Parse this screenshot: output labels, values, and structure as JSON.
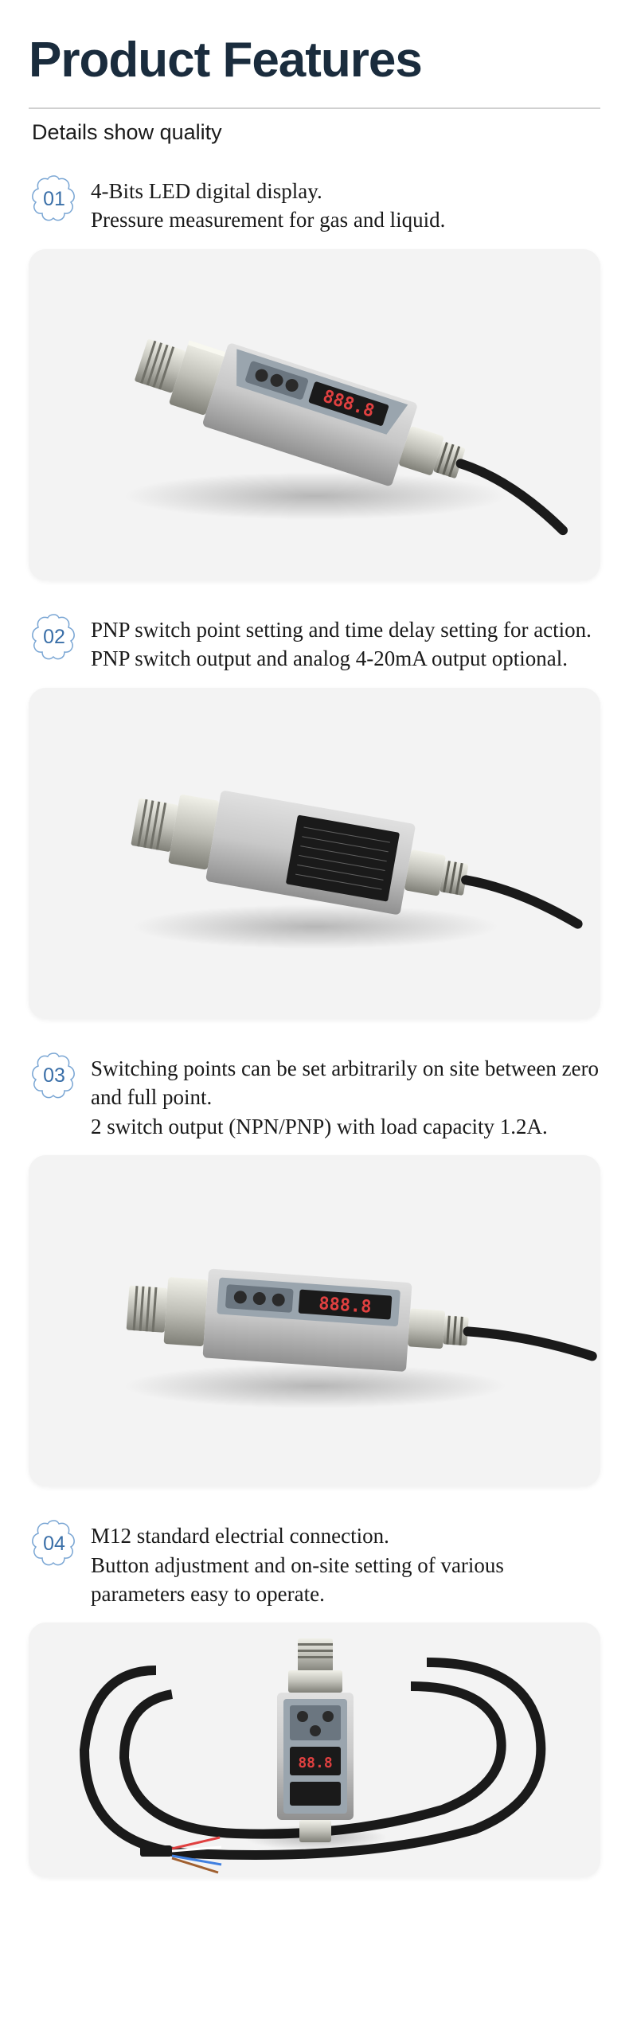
{
  "title": "Product Features",
  "subtitle": "Details show quality",
  "badge_stroke": "#7aa6d4",
  "badge_fill": "#ffffff",
  "badge_text_color": "#3a6fa8",
  "text_color": "#1a1a1a",
  "title_color": "#1a2c3d",
  "card_bg": "#f3f3f3",
  "features": [
    {
      "num": "01",
      "text": "4-Bits LED digital display.\nPressure measurement for gas and liquid."
    },
    {
      "num": "02",
      "text": "PNP switch point setting and time delay setting for action.\nPNP switch output and analog 4-20mA output optional."
    },
    {
      "num": "03",
      "text": "Switching points can be set arbitrarily on site between zero and full point.\n2 switch output (NPN/PNP) with load capacity 1.2A."
    },
    {
      "num": "04",
      "text": "M12 standard electrial connection.\nButton adjustment and on-site setting of various parameters easy to operate."
    }
  ],
  "device": {
    "body_color": "#c8c8c8",
    "body_dark": "#a0a0a0",
    "panel_color": "#9aa5ae",
    "panel_dark": "#6b7680",
    "button_color": "#2a2a2a",
    "led_bg": "#1a1a1a",
    "led_color": "#e04040",
    "led_digits": "888.8",
    "connector_color": "#d8d8d0",
    "connector_dark": "#888880",
    "cable_color": "#1a1a1a",
    "label_bg": "#1a1a1a",
    "wire_colors": [
      "#e04040",
      "#ffffff",
      "#1a1a1a",
      "#4080e0",
      "#a06030"
    ]
  }
}
